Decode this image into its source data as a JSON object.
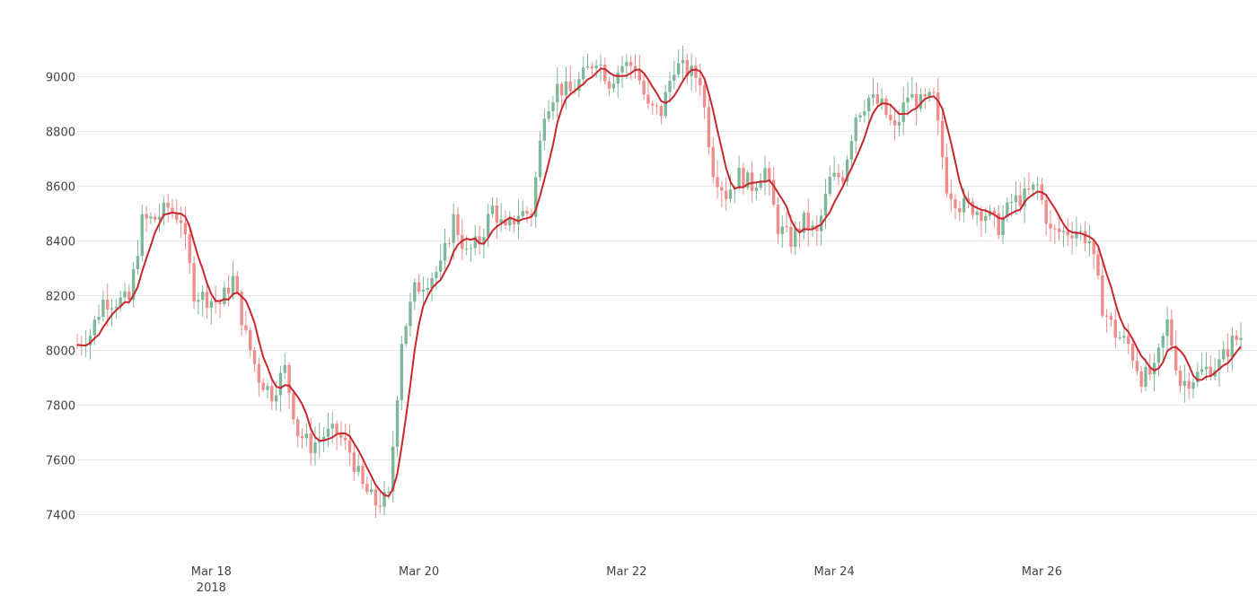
{
  "chart_data": {
    "type": "candlestick",
    "title": "",
    "xlabel": "",
    "ylabel": "",
    "ylim": [
      7280,
      9180
    ],
    "xlim": [
      "2018-03-16T17:00",
      "2018-03-27T22:00"
    ],
    "y_ticks": [
      7400,
      7600,
      7800,
      8000,
      8200,
      8400,
      8600,
      8800,
      9000
    ],
    "x_ticks": [
      {
        "at": "2018-03-18T00:00",
        "label": "Mar 18",
        "sublabel": "2018"
      },
      {
        "at": "2018-03-20T00:00",
        "label": "Mar 20",
        "sublabel": ""
      },
      {
        "at": "2018-03-22T00:00",
        "label": "Mar 22",
        "sublabel": ""
      },
      {
        "at": "2018-03-24T00:00",
        "label": "Mar 24",
        "sublabel": ""
      },
      {
        "at": "2018-03-26T00:00",
        "label": "Mar 26",
        "sublabel": ""
      }
    ],
    "grid": true,
    "legend": "none",
    "colors": {
      "up": "#7fb899",
      "down": "#f08c8c",
      "line": "#c8282d",
      "grid": "#e6e6e6",
      "tick": "#444444"
    },
    "candle_interval_hours": 1,
    "price_path": [
      [
        "2018-03-16T17:00",
        8020
      ],
      [
        "2018-03-16T20:00",
        8060
      ],
      [
        "2018-03-16T23:00",
        8180
      ],
      [
        "2018-03-17T02:00",
        8180
      ],
      [
        "2018-03-17T05:00",
        8180
      ],
      [
        "2018-03-17T08:00",
        8470
      ],
      [
        "2018-03-17T11:00",
        8480
      ],
      [
        "2018-03-17T14:00",
        8520
      ],
      [
        "2018-03-17T17:00",
        8480
      ],
      [
        "2018-03-17T20:00",
        8210
      ],
      [
        "2018-03-17T23:00",
        8190
      ],
      [
        "2018-03-18T02:00",
        8170
      ],
      [
        "2018-03-18T05:00",
        8260
      ],
      [
        "2018-03-18T08:00",
        8050
      ],
      [
        "2018-03-18T11:00",
        7900
      ],
      [
        "2018-03-18T14:00",
        7840
      ],
      [
        "2018-03-18T17:00",
        7930
      ],
      [
        "2018-03-18T20:00",
        7700
      ],
      [
        "2018-03-18T23:00",
        7650
      ],
      [
        "2018-03-19T02:00",
        7690
      ],
      [
        "2018-03-19T05:00",
        7700
      ],
      [
        "2018-03-19T08:00",
        7630
      ],
      [
        "2018-03-19T11:00",
        7500
      ],
      [
        "2018-03-19T14:00",
        7440
      ],
      [
        "2018-03-19T17:00",
        7460
      ],
      [
        "2018-03-19T20:00",
        8040
      ],
      [
        "2018-03-19T23:00",
        8220
      ],
      [
        "2018-03-20T02:00",
        8260
      ],
      [
        "2018-03-20T05:00",
        8300
      ],
      [
        "2018-03-20T08:00",
        8480
      ],
      [
        "2018-03-20T11:00",
        8350
      ],
      [
        "2018-03-20T14:00",
        8400
      ],
      [
        "2018-03-20T17:00",
        8520
      ],
      [
        "2018-03-20T20:00",
        8430
      ],
      [
        "2018-03-20T23:00",
        8500
      ],
      [
        "2018-03-21T02:00",
        8500
      ],
      [
        "2018-03-21T05:00",
        8880
      ],
      [
        "2018-03-21T08:00",
        8960
      ],
      [
        "2018-03-21T11:00",
        8940
      ],
      [
        "2018-03-21T14:00",
        9000
      ],
      [
        "2018-03-21T17:00",
        9070
      ],
      [
        "2018-03-21T20:00",
        8980
      ],
      [
        "2018-03-21T23:00",
        9040
      ],
      [
        "2018-03-22T02:00",
        9040
      ],
      [
        "2018-03-22T05:00",
        8880
      ],
      [
        "2018-03-22T08:00",
        8870
      ],
      [
        "2018-03-22T11:00",
        9040
      ],
      [
        "2018-03-22T14:00",
        9020
      ],
      [
        "2018-03-22T17:00",
        8990
      ],
      [
        "2018-03-22T20:00",
        8660
      ],
      [
        "2018-03-22T23:00",
        8570
      ],
      [
        "2018-03-23T02:00",
        8640
      ],
      [
        "2018-03-23T05:00",
        8600
      ],
      [
        "2018-03-23T08:00",
        8660
      ],
      [
        "2018-03-23T11:00",
        8450
      ],
      [
        "2018-03-23T14:00",
        8400
      ],
      [
        "2018-03-23T17:00",
        8470
      ],
      [
        "2018-03-23T20:00",
        8420
      ],
      [
        "2018-03-23T23:00",
        8620
      ],
      [
        "2018-03-24T02:00",
        8640
      ],
      [
        "2018-03-24T05:00",
        8860
      ],
      [
        "2018-03-24T08:00",
        8920
      ],
      [
        "2018-03-24T11:00",
        8890
      ],
      [
        "2018-03-24T14:00",
        8800
      ],
      [
        "2018-03-24T17:00",
        8930
      ],
      [
        "2018-03-24T20:00",
        8900
      ],
      [
        "2018-03-24T23:00",
        8920
      ],
      [
        "2018-03-25T02:00",
        8600
      ],
      [
        "2018-03-25T05:00",
        8530
      ],
      [
        "2018-03-25T08:00",
        8520
      ],
      [
        "2018-03-25T11:00",
        8500
      ],
      [
        "2018-03-25T14:00",
        8450
      ],
      [
        "2018-03-25T17:00",
        8540
      ],
      [
        "2018-03-25T20:00",
        8560
      ],
      [
        "2018-03-25T23:00",
        8600
      ],
      [
        "2018-03-26T02:00",
        8430
      ],
      [
        "2018-03-26T05:00",
        8430
      ],
      [
        "2018-03-26T08:00",
        8440
      ],
      [
        "2018-03-26T11:00",
        8400
      ],
      [
        "2018-03-26T14:00",
        8160
      ],
      [
        "2018-03-26T17:00",
        8060
      ],
      [
        "2018-03-26T20:00",
        8020
      ],
      [
        "2018-03-26T23:00",
        7900
      ],
      [
        "2018-03-27T02:00",
        7920
      ],
      [
        "2018-03-27T05:00",
        8100
      ],
      [
        "2018-03-27T08:00",
        7880
      ],
      [
        "2018-03-27T11:00",
        7900
      ],
      [
        "2018-03-27T14:00",
        7930
      ],
      [
        "2018-03-27T17:00",
        7950
      ],
      [
        "2018-03-27T20:00",
        8030
      ],
      [
        "2018-03-27T22:00",
        8050
      ]
    ],
    "series": [
      {
        "type": "line",
        "values": "moving average of close"
      }
    ]
  }
}
